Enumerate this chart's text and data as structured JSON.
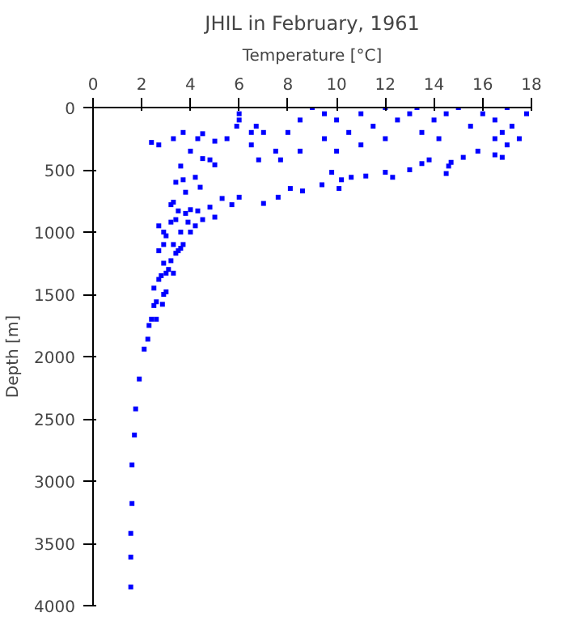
{
  "chart_data": {
    "type": "scatter",
    "title": "JHIL in February, 1961",
    "xlabel": "Temperature [°C]",
    "ylabel": "Depth [m]",
    "xlim": [
      0,
      18
    ],
    "xticks": [
      0,
      2,
      4,
      6,
      8,
      10,
      12,
      14,
      16,
      18
    ],
    "ylim": [
      4000,
      0
    ],
    "yticks": [
      0,
      500,
      1000,
      1500,
      2000,
      2500,
      3000,
      3500,
      4000
    ],
    "grid": false,
    "marker": "square",
    "color": "#0000ff",
    "x": [
      1.55,
      1.55,
      1.55,
      1.6,
      1.6,
      1.7,
      1.75,
      1.9,
      2.1,
      2.25,
      2.3,
      2.4,
      2.6,
      2.5,
      2.6,
      2.85,
      2.9,
      2.5,
      3.0,
      2.7,
      2.8,
      3.0,
      3.1,
      3.3,
      2.9,
      3.2,
      3.4,
      3.5,
      2.7,
      2.9,
      3.0,
      3.3,
      3.6,
      3.7,
      2.7,
      2.9,
      3.2,
      3.4,
      3.5,
      3.2,
      3.3,
      3.8,
      4.0,
      4.3,
      4.5,
      4.2,
      3.9,
      3.6,
      4.0,
      5.0,
      4.8,
      5.3,
      5.7,
      6.0,
      7.0,
      7.6,
      8.1,
      8.6,
      9.4,
      10.1,
      10.2,
      10.6,
      9.8,
      11.2,
      12,
      12.3,
      13,
      13.5,
      13.8,
      14.5,
      14.6,
      14.7,
      15.2,
      15.8,
      16.5,
      16.8,
      3.4,
      3.7,
      3.6,
      3.8,
      4.2,
      4.4,
      4.5,
      4.8,
      5.0,
      4.0,
      2.7,
      2.4,
      3.3,
      3.7,
      4.3,
      4.5,
      5.0,
      5.5,
      6.0,
      6.0,
      5.9,
      6.5,
      6.7,
      7.0,
      8.0,
      8.5,
      9,
      9.5,
      10,
      10.5,
      11,
      11.5,
      12,
      12.5,
      13,
      13.3,
      13.5,
      14,
      14.5,
      15,
      15.5,
      16,
      16.5,
      17,
      17.2,
      17.5,
      17.8,
      16.8,
      17,
      16.5,
      9.5,
      12,
      14.2,
      11,
      7.5,
      6.5,
      8.5,
      10,
      6.8,
      7.7
    ],
    "values": [
      3850,
      3610,
      3420,
      3180,
      2870,
      2630,
      2420,
      2180,
      1940,
      1860,
      1750,
      1700,
      1700,
      1590,
      1560,
      1580,
      1500,
      1450,
      1480,
      1380,
      1350,
      1330,
      1300,
      1330,
      1250,
      1230,
      1170,
      1150,
      1150,
      1100,
      1030,
      1100,
      1130,
      1100,
      950,
      1000,
      920,
      900,
      830,
      780,
      760,
      850,
      820,
      830,
      900,
      950,
      920,
      1000,
      1000,
      880,
      800,
      730,
      780,
      720,
      770,
      720,
      650,
      670,
      620,
      650,
      580,
      560,
      520,
      550,
      520,
      560,
      500,
      450,
      420,
      530,
      470,
      440,
      400,
      350,
      380,
      400,
      600,
      580,
      470,
      680,
      560,
      640,
      410,
      420,
      460,
      350,
      300,
      280,
      250,
      200,
      250,
      210,
      270,
      250,
      50,
      100,
      150,
      200,
      150,
      200,
      200,
      100,
      0,
      50,
      100,
      200,
      50,
      150,
      0,
      100,
      50,
      0,
      200,
      100,
      50,
      0,
      150,
      50,
      100,
      0,
      150,
      250,
      50,
      200,
      300,
      250,
      250,
      250,
      250,
      300,
      350,
      300,
      350,
      350,
      420,
      420
    ]
  }
}
